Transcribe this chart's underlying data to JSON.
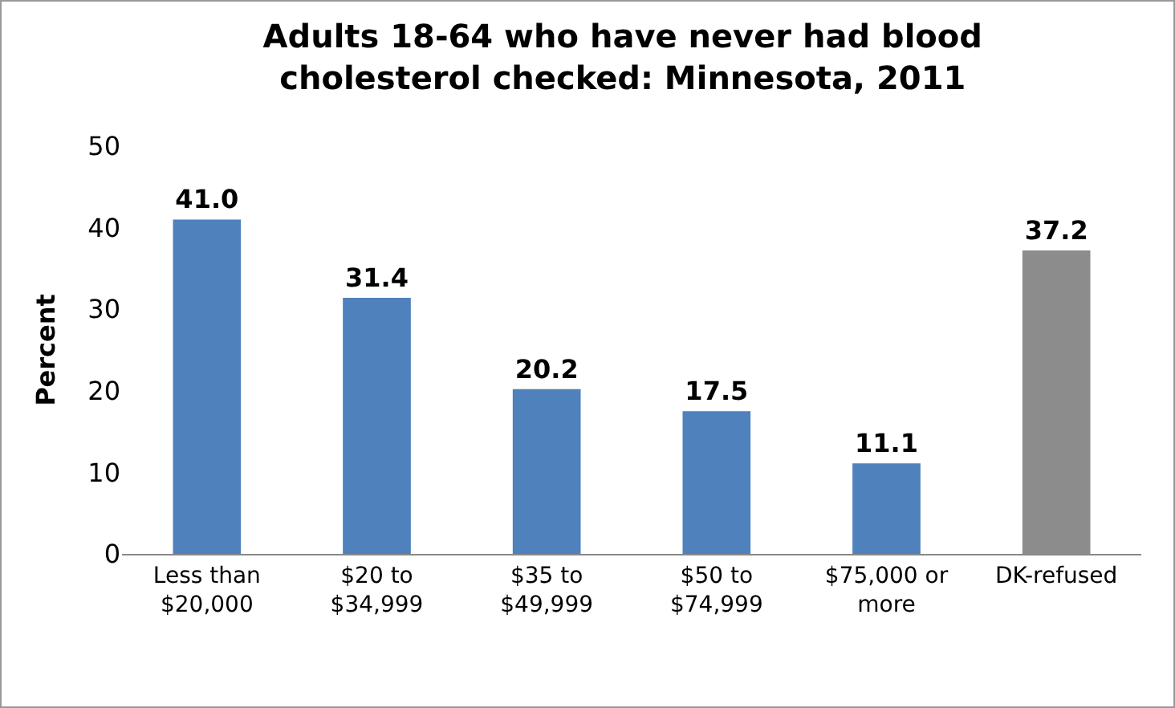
{
  "chart_data": {
    "type": "bar",
    "title": "Adults 18-64 who have never had blood cholesterol checked: Minnesota, 2011",
    "ylabel": "Percent",
    "categories": [
      "Less than $20,000",
      "$20 to $34,999",
      "$35 to $49,999",
      "$50 to $74,999",
      "$75,000 or more",
      "DK-refused"
    ],
    "values": [
      41.0,
      31.4,
      20.2,
      17.5,
      11.1,
      37.2
    ],
    "colors": [
      "#4f81bd",
      "#4f81bd",
      "#4f81bd",
      "#4f81bd",
      "#4f81bd",
      "#8c8c8c"
    ],
    "value_labels": [
      "41.0",
      "31.4",
      "20.2",
      "17.5",
      "11.1",
      "37.2"
    ],
    "ylim": [
      0,
      50
    ],
    "yticks": [
      0,
      10,
      20,
      30,
      40,
      50
    ],
    "grid": false
  }
}
